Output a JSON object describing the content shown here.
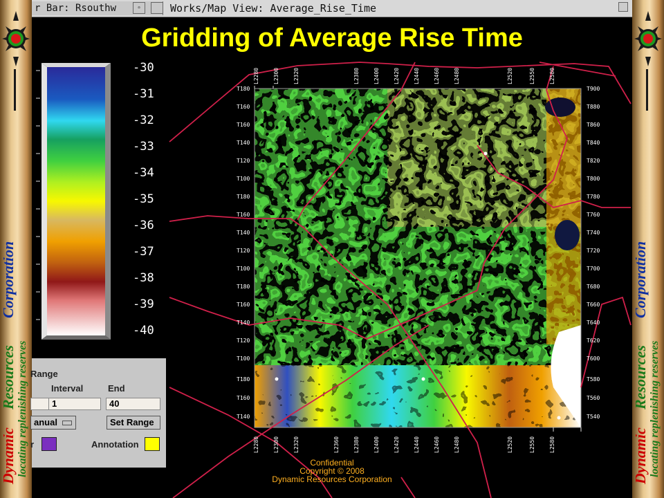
{
  "window": {
    "left_title": "r Bar: Rsouthw",
    "map_title": "Works/Map View: Average_Rise_Time"
  },
  "slide": {
    "title": "Gridding of Average Rise Time"
  },
  "banner": {
    "word1": "Dynamic",
    "word2": "Resources",
    "word3": "Corporation",
    "tagline": "locating replenishing reserves",
    "colors": {
      "word1": "#cc0000",
      "word2": "#1a7a1a",
      "word3": "#1030a0",
      "tagline": "#1a7a1a"
    }
  },
  "colorbar": {
    "labels": [
      "-30",
      "-31",
      "-32",
      "-33",
      "-34",
      "-35",
      "-36",
      "-37",
      "-38",
      "-39",
      "-40"
    ]
  },
  "range_panel": {
    "heading": "Range",
    "interval_label": "Interval",
    "end_label": "End",
    "start_value": "",
    "interval_value": "1",
    "end_value": "40",
    "mode_value": "anual",
    "set_range_label": "Set Range",
    "border_label": "r",
    "annotation_label": "Annotation",
    "border_color": "#7b2fbf",
    "annotation_color": "#ffff00"
  },
  "map": {
    "top_ticks": [
      "L2280",
      "L2300",
      "L2320",
      "",
      "",
      "L2380",
      "L2400",
      "L2420",
      "L2440",
      "L2460",
      "L2480",
      "",
      "L2520",
      "L2550",
      "L2580"
    ],
    "bottom_ticks": [
      "L2280",
      "L2300",
      "L2320",
      "",
      "L2360",
      "L2380",
      "L2400",
      "L2420",
      "L2440",
      "L2460",
      "L2480",
      "",
      "L2520",
      "L2550",
      "L2580"
    ],
    "left_ticks": [
      "T180",
      "T160",
      "T160",
      "T140",
      "T120",
      "T100",
      "T180",
      "T160",
      "T140",
      "T120",
      "T100",
      "T180",
      "T160",
      "T140",
      "T120",
      "T100",
      "T180",
      "T160",
      "T140"
    ],
    "right_ticks": [
      "T900",
      "T880",
      "T860",
      "T840",
      "T820",
      "T800",
      "T780",
      "T760",
      "T740",
      "T720",
      "T700",
      "T680",
      "T660",
      "T640",
      "T620",
      "T600",
      "T580",
      "T560",
      "T540"
    ]
  },
  "footer": {
    "line1": "Confidential",
    "line2": "Copyright © 2008",
    "line3": "Dynamic Resources Corporation"
  }
}
